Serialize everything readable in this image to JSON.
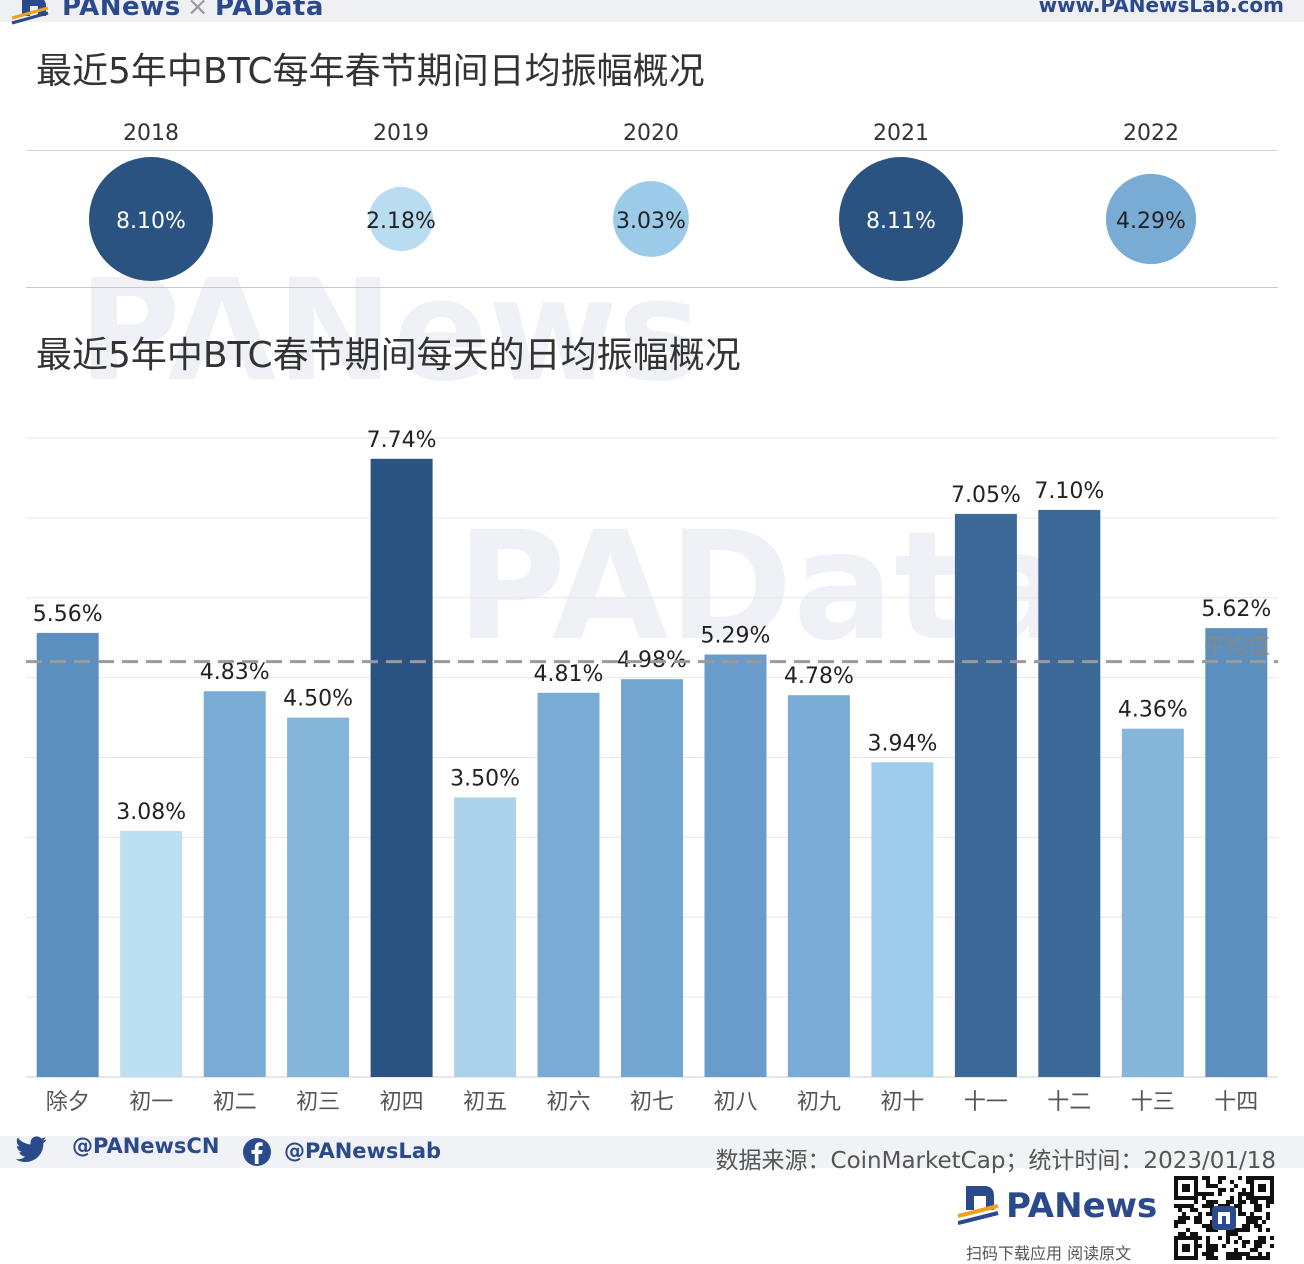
{
  "header": {
    "brand_left": "PANews",
    "brand_sep": "×",
    "brand_right": "PAData",
    "site_url": "www.PANewsLab.com"
  },
  "watermarks": {
    "top": "PANews",
    "middle": "PAData"
  },
  "chart_data": [
    {
      "type": "bubble",
      "title": "最近5年中BTC每年春节期间日均振幅概况",
      "categories": [
        "2018",
        "2019",
        "2020",
        "2021",
        "2022"
      ],
      "values": [
        8.1,
        2.18,
        3.03,
        8.11,
        4.29
      ],
      "labels": [
        "8.10%",
        "2.18%",
        "3.03%",
        "8.11%",
        "4.29%"
      ],
      "unit": "%",
      "colors": [
        "#2a5382",
        "#b9dcf0",
        "#9ccbea",
        "#2a5382",
        "#79acd5"
      ]
    },
    {
      "type": "bar",
      "title": "最近5年中BTC春节期间每天的日均振幅概况",
      "categories": [
        "除夕",
        "初一",
        "初二",
        "初三",
        "初四",
        "初五",
        "初六",
        "初七",
        "初八",
        "初九",
        "初十",
        "十一",
        "十二",
        "十三",
        "十四"
      ],
      "values": [
        5.56,
        3.08,
        4.83,
        4.5,
        7.74,
        3.5,
        4.81,
        4.98,
        5.29,
        4.78,
        3.94,
        7.05,
        7.1,
        4.36,
        5.62
      ],
      "labels": [
        "5.56%",
        "3.08%",
        "4.83%",
        "4.50%",
        "7.74%",
        "3.50%",
        "4.81%",
        "4.98%",
        "5.29%",
        "4.78%",
        "3.94%",
        "7.05%",
        "7.10%",
        "4.36%",
        "5.62%"
      ],
      "colors": [
        "#5b8fbd",
        "#bcdff2",
        "#79abd4",
        "#86b5da",
        "#2a5382",
        "#aad3eb",
        "#79abd4",
        "#73a6d0",
        "#6a9ccb",
        "#79abd4",
        "#9ecdea",
        "#3d6999",
        "#3d6999",
        "#86b5da",
        "#5b8fbd"
      ],
      "ylim": [
        0,
        8
      ],
      "grid": true,
      "average": {
        "label": "平均值",
        "value": 5.2
      }
    }
  ],
  "footer": {
    "twitter": "@PANewsCN",
    "facebook": "@PANewsLab",
    "source": "数据来源：CoinMarketCap；统计时间：2023/01/18",
    "logo_text": "PANews",
    "scan_text": "扫码下载应用  阅读原文"
  }
}
